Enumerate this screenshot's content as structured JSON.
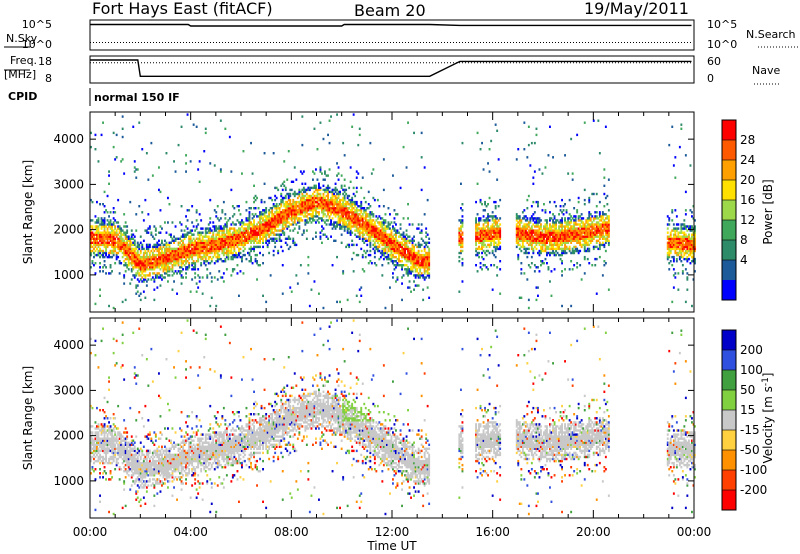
{
  "header": {
    "station": "Fort Hays East (fitACF)",
    "beam": "Beam 20",
    "date": "19/May/2011"
  },
  "top_panels": {
    "nsky_label": "N.Sky",
    "nsky_ticks": [
      "10^5",
      "10^0"
    ],
    "nsearch_label": "N.Search",
    "nsearch_ticks": [
      "10^5",
      "10^0"
    ],
    "freq_label": "Freq.",
    "freq_unit": "[MHz]",
    "freq_ticks": [
      "18",
      "8"
    ],
    "nave_label": "Nave",
    "nave_ticks": [
      "60",
      "0"
    ],
    "cpid_label": "CPID",
    "cpid_value": "normal 150 IF"
  },
  "chart_data": [
    {
      "type": "heatmap",
      "panel": "power",
      "ylabel": "Slant Range [km]",
      "ylim": [
        180,
        4600
      ],
      "yticks": [
        "4000",
        "3000",
        "2000",
        "1000"
      ],
      "xlim_hours": [
        0,
        24
      ],
      "xticks": [
        "00:00",
        "04:00",
        "08:00",
        "12:00",
        "16:00",
        "20:00",
        "00:00"
      ],
      "colorbar_label": "Power [dB]",
      "colorbar_ticks": [
        "28",
        "24",
        "20",
        "16",
        "12",
        "8",
        "4"
      ],
      "colorbar_colors": [
        "#ff0000",
        "#ff5a00",
        "#ffa000",
        "#ffe000",
        "#9dd84a",
        "#3fa85a",
        "#2e8b6a",
        "#1c5a9a",
        "#0000ff"
      ],
      "bands": [
        {
          "name": "main scatter",
          "points": [
            [
              0.0,
              1800
            ],
            [
              1.0,
              1750
            ],
            [
              2.0,
              1200
            ],
            [
              3.0,
              1350
            ],
            [
              4.0,
              1550
            ],
            [
              5.0,
              1650
            ],
            [
              6.0,
              1800
            ],
            [
              7.0,
              2050
            ],
            [
              8.0,
              2400
            ],
            [
              9.0,
              2600
            ],
            [
              10.0,
              2400
            ],
            [
              11.0,
              2050
            ],
            [
              12.0,
              1650
            ],
            [
              13.0,
              1300
            ],
            [
              14.0,
              null
            ],
            [
              15.0,
              1800
            ],
            [
              16.0,
              1900
            ],
            [
              17.0,
              1900
            ],
            [
              18.0,
              1800
            ],
            [
              19.0,
              1850
            ],
            [
              20.0,
              1950
            ],
            [
              20.5,
              2000
            ],
            [
              23.0,
              1700
            ],
            [
              24.0,
              1650
            ]
          ]
        }
      ]
    },
    {
      "type": "heatmap",
      "panel": "velocity",
      "ylabel": "Slant Range [km]",
      "ylim": [
        180,
        4600
      ],
      "yticks": [
        "4000",
        "3000",
        "2000",
        "1000"
      ],
      "xlim_hours": [
        0,
        24
      ],
      "xticks": [
        "00:00",
        "04:00",
        "08:00",
        "12:00",
        "16:00",
        "20:00",
        "00:00"
      ],
      "xlabel": "Time UT",
      "colorbar_label": "Velocity [m s",
      "colorbar_label_sup": "-1",
      "colorbar_label_end": "]",
      "colorbar_ticks": [
        "200",
        "100",
        "50",
        "15",
        "-15",
        "-50",
        "-100",
        "-200"
      ],
      "colorbar_colors": [
        "#0000c8",
        "#3050e0",
        "#40a040",
        "#80d040",
        "#c8c8c8",
        "#ffd040",
        "#ff9000",
        "#ff4000",
        "#ff0000"
      ]
    }
  ]
}
